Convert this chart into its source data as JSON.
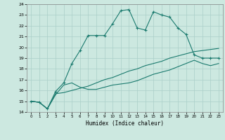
{
  "xlabel": "Humidex (Indice chaleur)",
  "background_color": "#cce8e0",
  "grid_color": "#aacfc8",
  "line_color": "#1a7a6e",
  "xlim": [
    -0.5,
    23.5
  ],
  "ylim": [
    14,
    24
  ],
  "yticks": [
    14,
    15,
    16,
    17,
    18,
    19,
    20,
    21,
    22,
    23,
    24
  ],
  "xticks": [
    0,
    1,
    2,
    3,
    4,
    5,
    6,
    7,
    8,
    9,
    10,
    11,
    12,
    13,
    14,
    15,
    16,
    17,
    18,
    19,
    20,
    21,
    22,
    23
  ],
  "series1_x": [
    0,
    1,
    2,
    3,
    4,
    5,
    6,
    7,
    8,
    9,
    10,
    11,
    12,
    13,
    14,
    15,
    16,
    17,
    18,
    19,
    20,
    21,
    22,
    23
  ],
  "series1_y": [
    15.0,
    14.9,
    14.3,
    15.6,
    16.5,
    16.7,
    16.3,
    16.1,
    16.1,
    16.3,
    16.5,
    16.6,
    16.7,
    16.9,
    17.2,
    17.5,
    17.7,
    17.9,
    18.2,
    18.5,
    18.8,
    18.5,
    18.3,
    18.5
  ],
  "series2_x": [
    0,
    1,
    2,
    3,
    4,
    5,
    6,
    7,
    8,
    9,
    10,
    11,
    12,
    13,
    14,
    15,
    16,
    17,
    18,
    19,
    20,
    21,
    22,
    23
  ],
  "series2_y": [
    15.0,
    14.9,
    14.3,
    15.7,
    15.8,
    16.0,
    16.2,
    16.4,
    16.7,
    17.0,
    17.2,
    17.5,
    17.8,
    18.0,
    18.3,
    18.5,
    18.7,
    19.0,
    19.2,
    19.4,
    19.6,
    19.7,
    19.8,
    19.9
  ],
  "series3_x": [
    0,
    1,
    2,
    3,
    4,
    5,
    6,
    7,
    8,
    9,
    10,
    11,
    12,
    13,
    14,
    15,
    16,
    17,
    18,
    19,
    20,
    21,
    22,
    23
  ],
  "series3_y": [
    15.0,
    14.9,
    14.3,
    15.9,
    16.7,
    18.5,
    19.7,
    21.1,
    21.1,
    21.1,
    22.2,
    23.4,
    23.5,
    21.8,
    21.6,
    23.3,
    23.0,
    22.8,
    21.8,
    21.2,
    19.3,
    19.0,
    19.0,
    19.0
  ]
}
